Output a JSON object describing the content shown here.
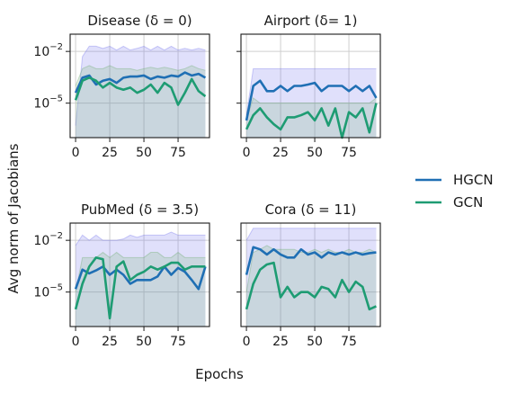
{
  "figure": {
    "ylabel": "Avg norm of Jacobians",
    "xlabel": "Epochs"
  },
  "legend": {
    "placement": "right",
    "entries": [
      {
        "name": "HGCN",
        "color": "#1f6fb4"
      },
      {
        "name": "GCN",
        "color": "#1e9c73"
      }
    ]
  },
  "chart_data": [
    {
      "type": "line",
      "title": "Disease (δ = 0)",
      "yscale": "log",
      "xlim": [
        -4,
        98
      ],
      "ylim": [
        1e-07,
        0.1
      ],
      "xticks": [
        0,
        25,
        50,
        75
      ],
      "yticks": [
        {
          "value": 0.01,
          "base": "10",
          "exp": "−2"
        },
        {
          "value": 1e-05,
          "base": "10",
          "exp": "−5"
        }
      ],
      "show_yticklabels": true,
      "grid": true,
      "x": [
        0,
        5,
        10,
        15,
        20,
        25,
        30,
        35,
        40,
        45,
        50,
        55,
        60,
        65,
        70,
        75,
        80,
        85,
        90,
        95
      ],
      "series": [
        {
          "name": "HGCN",
          "color": "#1f6fb4",
          "values": [
            4e-05,
            0.0003,
            0.0004,
            0.00012,
            0.0002,
            0.00025,
            0.00015,
            0.0003,
            0.00035,
            0.00035,
            0.0004,
            0.00025,
            0.00035,
            0.0003,
            0.0004,
            0.00035,
            0.0006,
            0.0004,
            0.0005,
            0.0003
          ],
          "band": [
            5e-07,
            0.005,
            0.02,
            0.02,
            0.015,
            0.02,
            0.012,
            0.02,
            0.012,
            0.015,
            0.02,
            0.012,
            0.02,
            0.012,
            0.02,
            0.012,
            0.015,
            0.012,
            0.015,
            0.012
          ]
        },
        {
          "name": "GCN",
          "color": "#1e9c73",
          "values": [
            1.5e-05,
            0.0002,
            0.0003,
            0.0002,
            8e-05,
            0.00015,
            8e-05,
            6e-05,
            8e-05,
            4e-05,
            6e-05,
            0.00012,
            4e-05,
            0.00015,
            8e-05,
            8e-06,
            4e-05,
            0.00025,
            5e-05,
            2.5e-05
          ],
          "band": [
            0.0001,
            0.001,
            0.0015,
            0.001,
            0.001,
            0.0015,
            0.001,
            0.001,
            0.001,
            0.0008,
            0.001,
            0.0012,
            0.001,
            0.0012,
            0.001,
            0.0008,
            0.001,
            0.0015,
            0.001,
            0.0008
          ]
        }
      ]
    },
    {
      "type": "line",
      "title": "Airport (δ= 1)",
      "yscale": "log",
      "xlim": [
        -4,
        98
      ],
      "ylim": [
        1e-07,
        0.1
      ],
      "xticks": [
        0,
        25,
        50,
        75
      ],
      "yticks": [
        {
          "value": 0.01,
          "base": "10",
          "exp": "−2"
        },
        {
          "value": 1e-05,
          "base": "10",
          "exp": "−5"
        }
      ],
      "show_yticklabels": false,
      "grid": true,
      "x": [
        0,
        5,
        10,
        15,
        20,
        25,
        30,
        35,
        40,
        45,
        50,
        55,
        60,
        65,
        70,
        75,
        80,
        85,
        90,
        95
      ],
      "series": [
        {
          "name": "HGCN",
          "color": "#1f6fb4",
          "values": [
            1e-06,
            0.0001,
            0.0002,
            5e-05,
            5e-05,
            0.0001,
            5e-05,
            0.0001,
            0.0001,
            0.00012,
            0.00015,
            5e-05,
            0.0001,
            0.0001,
            0.0001,
            5e-05,
            0.0001,
            5e-05,
            0.0001,
            2e-05
          ],
          "band": [
            2e-06,
            0.001,
            0.001,
            0.001,
            0.001,
            0.001,
            0.001,
            0.001,
            0.001,
            0.001,
            0.001,
            0.001,
            0.001,
            0.001,
            0.001,
            0.001,
            0.001,
            0.001,
            0.001,
            0.001
          ]
        },
        {
          "name": "GCN",
          "color": "#1e9c73",
          "values": [
            3e-07,
            2e-06,
            5e-06,
            1.5e-06,
            6e-07,
            3e-07,
            1.5e-06,
            1.5e-06,
            2e-06,
            3e-06,
            1e-06,
            5e-06,
            5e-07,
            5e-06,
            1e-07,
            3e-06,
            1.5e-06,
            5e-06,
            2e-07,
            1e-05
          ],
          "band": [
            1e-06,
            2e-05,
            1e-05,
            1e-05,
            1e-05,
            1e-05,
            1e-05,
            1e-05,
            1e-05,
            1e-05,
            1e-05,
            1e-05,
            1e-05,
            1e-05,
            1e-05,
            1e-05,
            1e-05,
            1e-05,
            1e-05,
            2e-05
          ]
        }
      ]
    },
    {
      "type": "line",
      "title": "PubMed (δ = 3.5)",
      "yscale": "log",
      "xlim": [
        -4,
        98
      ],
      "ylim": [
        1e-07,
        0.1
      ],
      "xticks": [
        0,
        25,
        50,
        75
      ],
      "yticks": [
        {
          "value": 0.01,
          "base": "10",
          "exp": "−2"
        },
        {
          "value": 1e-05,
          "base": "10",
          "exp": "−5"
        }
      ],
      "show_yticklabels": true,
      "grid": true,
      "x": [
        0,
        5,
        10,
        15,
        20,
        25,
        30,
        35,
        40,
        45,
        50,
        55,
        60,
        65,
        70,
        75,
        80,
        85,
        90,
        95
      ],
      "series": [
        {
          "name": "HGCN",
          "color": "#1f6fb4",
          "values": [
            1.5e-05,
            0.0002,
            0.00012,
            0.00018,
            0.0003,
            0.0001,
            0.0002,
            0.0001,
            3e-05,
            5e-05,
            5e-05,
            5e-05,
            8e-05,
            0.0003,
            0.0001,
            0.00025,
            0.00015,
            5e-05,
            1.5e-05,
            0.0003
          ],
          "band": [
            0.005,
            0.02,
            0.01,
            0.02,
            0.01,
            0.01,
            0.01,
            0.012,
            0.02,
            0.015,
            0.02,
            0.02,
            0.02,
            0.02,
            0.03,
            0.02,
            0.02,
            0.02,
            0.02,
            0.02
          ]
        },
        {
          "name": "GCN",
          "color": "#1e9c73",
          "values": [
            1e-06,
            3e-05,
            0.0003,
            0.001,
            0.0008,
            3e-07,
            0.0003,
            0.0006,
            5e-05,
            0.0001,
            0.00015,
            0.0003,
            0.0002,
            0.0003,
            0.0005,
            0.0005,
            0.0002,
            0.0003,
            0.0003,
            0.0003
          ],
          "band": [
            1e-05,
            0.001,
            0.001,
            0.001,
            0.002,
            0.001,
            0.002,
            0.001,
            0.001,
            0.001,
            0.001,
            0.002,
            0.002,
            0.001,
            0.001,
            0.002,
            0.001,
            0.001,
            0.001,
            0.001
          ]
        }
      ]
    },
    {
      "type": "line",
      "title": "Cora (δ = 11)",
      "yscale": "log",
      "xlim": [
        -4,
        98
      ],
      "ylim": [
        1e-07,
        0.1
      ],
      "xticks": [
        0,
        25,
        50,
        75
      ],
      "yticks": [
        {
          "value": 0.01,
          "base": "10",
          "exp": "−2"
        },
        {
          "value": 1e-05,
          "base": "10",
          "exp": "−5"
        }
      ],
      "show_yticklabels": false,
      "grid": true,
      "x": [
        0,
        5,
        10,
        15,
        20,
        25,
        30,
        35,
        40,
        45,
        50,
        55,
        60,
        65,
        70,
        75,
        80,
        85,
        90,
        95
      ],
      "series": [
        {
          "name": "HGCN",
          "color": "#1f6fb4",
          "values": [
            0.0001,
            0.004,
            0.003,
            0.0015,
            0.003,
            0.0015,
            0.001,
            0.001,
            0.003,
            0.0015,
            0.002,
            0.001,
            0.002,
            0.0015,
            0.002,
            0.0015,
            0.002,
            0.0015,
            0.0018,
            0.002
          ],
          "band": [
            0.01,
            0.05,
            0.05,
            0.05,
            0.05,
            0.05,
            0.05,
            0.05,
            0.05,
            0.05,
            0.05,
            0.05,
            0.05,
            0.05,
            0.05,
            0.05,
            0.05,
            0.05,
            0.05,
            0.05
          ]
        },
        {
          "name": "GCN",
          "color": "#1e9c73",
          "values": [
            1e-06,
            3e-05,
            0.0002,
            0.0004,
            0.0005,
            5e-06,
            2e-05,
            5e-06,
            1e-05,
            1e-05,
            5e-06,
            2e-05,
            1.5e-05,
            5e-06,
            5e-05,
            1e-05,
            4e-05,
            2e-05,
            1e-06,
            1.5e-06
          ],
          "band": [
            1e-05,
            0.002,
            0.003,
            0.005,
            0.003,
            0.003,
            0.003,
            0.003,
            0.002,
            0.002,
            0.003,
            0.002,
            0.003,
            0.002,
            0.002,
            0.003,
            0.002,
            0.002,
            0.003,
            0.002
          ]
        }
      ]
    }
  ]
}
